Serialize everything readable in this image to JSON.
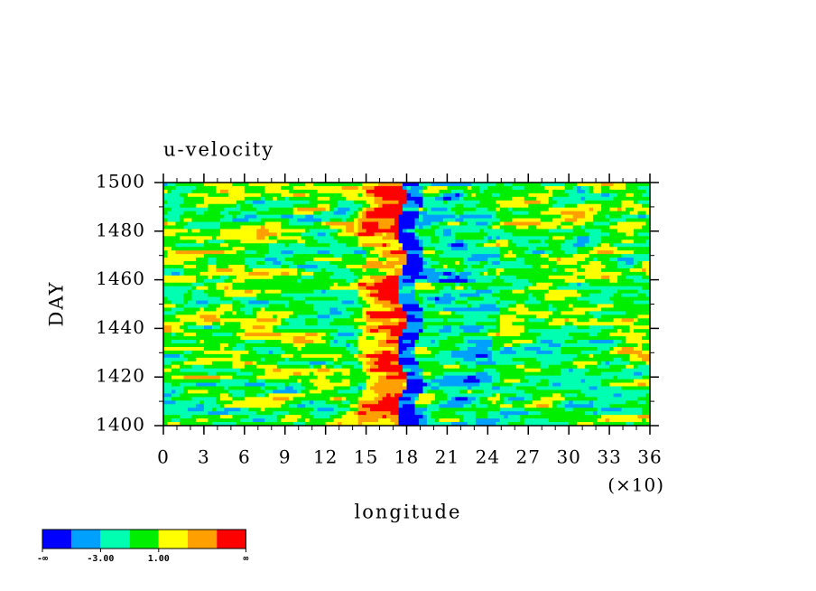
{
  "chart_data": {
    "type": "contour",
    "title": "u-velocity",
    "xlabel": "longitude",
    "ylabel": "DAY",
    "x_multiplier": "(×10)",
    "xlim": [
      0,
      36
    ],
    "xticks": [
      0,
      3,
      6,
      9,
      12,
      15,
      18,
      21,
      24,
      27,
      30,
      33,
      36
    ],
    "x_minor_step": 1,
    "ylim": [
      1400,
      1500
    ],
    "yticks": [
      1400,
      1420,
      1440,
      1460,
      1480,
      1500
    ],
    "y_minor_step": 10,
    "colorbar": {
      "colors": [
        "#0000ff",
        "#00a0ff",
        "#00ffb0",
        "#00ee00",
        "#ffff00",
        "#ffa000",
        "#ff0000"
      ],
      "labels": [
        "-∞",
        "-3.00",
        "1.00",
        "∞"
      ]
    }
  }
}
